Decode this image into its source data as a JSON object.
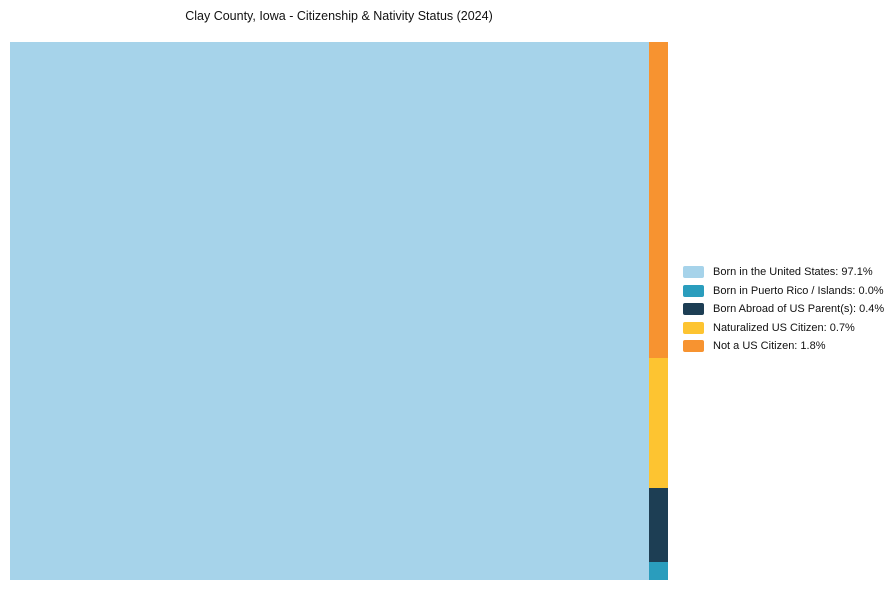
{
  "chart_data": {
    "type": "treemap",
    "title": "Clay County, Iowa - Citizenship & Nativity Status (2024)",
    "categories": [
      "Born in the United States",
      "Born in Puerto Rico / Islands",
      "Born Abroad of US Parent(s)",
      "Naturalized US Citizen",
      "Not a US Citizen"
    ],
    "values": [
      97.1,
      0.0,
      0.4,
      0.7,
      1.8
    ],
    "colors": [
      "#a6d3ea",
      "#2a9dbd",
      "#1d3e54",
      "#fdc431",
      "#f79330"
    ],
    "legend_labels": [
      "Born in the United States: 97.1%",
      "Born in Puerto Rico / Islands: 0.0%",
      "Born Abroad of US Parent(s): 0.4%",
      "Naturalized US Citizen: 0.7%",
      "Not a US Citizen: 1.8%"
    ],
    "legend_position": "right",
    "grid": false,
    "background": "#ffffff"
  }
}
